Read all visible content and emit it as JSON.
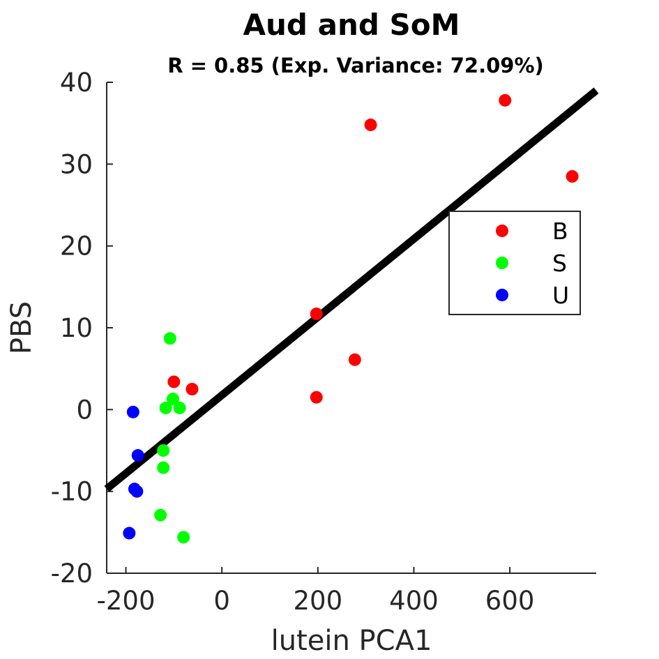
{
  "chart_data": {
    "type": "scatter",
    "title": "Aud and SoM",
    "subtitle": "R = 0.85 (Exp. Variance: 72.09%)",
    "xlabel": "lutein PCA1",
    "ylabel": "PBS",
    "xlim": [
      -240,
      780
    ],
    "ylim": [
      -20,
      40
    ],
    "xticks": [
      -200,
      0,
      200,
      400,
      600
    ],
    "xtick_labels": [
      "-200",
      "0",
      "200",
      "400",
      "600"
    ],
    "yticks": [
      -20,
      -10,
      0,
      10,
      20,
      30,
      40
    ],
    "ytick_labels": [
      "-20",
      "-10",
      "0",
      "10",
      "20",
      "30",
      "40"
    ],
    "grid": false,
    "legend_position": "right",
    "series": [
      {
        "name": "B",
        "color": "#ff0000",
        "points": [
          {
            "x": 590,
            "y": 37.8
          },
          {
            "x": 310,
            "y": 34.8
          },
          {
            "x": 730,
            "y": 28.5
          },
          {
            "x": 197,
            "y": 11.7
          },
          {
            "x": 277,
            "y": 6.1
          },
          {
            "x": 197,
            "y": 1.5
          },
          {
            "x": -100,
            "y": 3.4
          },
          {
            "x": -62,
            "y": 2.5
          }
        ]
      },
      {
        "name": "S",
        "color": "#00ff00",
        "points": [
          {
            "x": -108,
            "y": 8.7
          },
          {
            "x": -102,
            "y": 1.3
          },
          {
            "x": -117,
            "y": 0.2
          },
          {
            "x": -88,
            "y": 0.2
          },
          {
            "x": -122,
            "y": -5.0
          },
          {
            "x": -122,
            "y": -7.1
          },
          {
            "x": -128,
            "y": -12.9
          },
          {
            "x": -80,
            "y": -15.6
          }
        ]
      },
      {
        "name": "U",
        "color": "#0000ff",
        "points": [
          {
            "x": -185,
            "y": -0.3
          },
          {
            "x": -175,
            "y": -5.6
          },
          {
            "x": -182,
            "y": -9.7
          },
          {
            "x": -177,
            "y": -10.0
          },
          {
            "x": -193,
            "y": -15.1
          }
        ]
      }
    ],
    "fit_line": {
      "color": "#000000",
      "points": [
        {
          "x": -240,
          "y": -9.7
        },
        {
          "x": 780,
          "y": 39.0
        }
      ]
    }
  }
}
